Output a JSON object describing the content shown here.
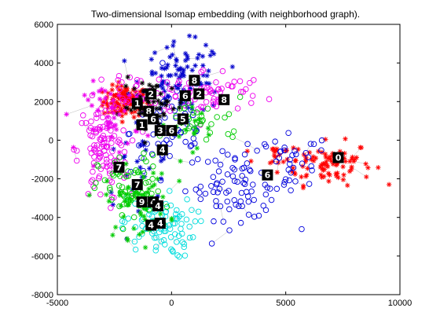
{
  "chart_data": {
    "type": "scatter",
    "title": "Two-dimensional Isomap embedding (with neighborhood graph).",
    "xlabel": "",
    "ylabel": "",
    "xlim": [
      -5000,
      10000
    ],
    "ylim": [
      -8000,
      6000
    ],
    "xticks": [
      "-5000",
      "0",
      "5000",
      "10000"
    ],
    "yticks": [
      "-8000",
      "-6000",
      "-4000",
      "-2000",
      "0",
      "2000",
      "4000",
      "6000"
    ],
    "grid": false,
    "legend": "none",
    "series": [
      {
        "marker": "star",
        "color": "#ff0000",
        "clusters": [
          {
            "cx": -2000,
            "cy": 2000,
            "sx": 500,
            "sy": 400,
            "n": 120
          },
          {
            "cx": 6800,
            "cy": -1200,
            "sx": 1000,
            "sy": 550,
            "n": 90
          },
          {
            "cx": 4500,
            "cy": -800,
            "sx": 500,
            "sy": 400,
            "n": 18
          }
        ]
      },
      {
        "marker": "circle",
        "color": "#0000dd",
        "clusters": [
          {
            "cx": 3000,
            "cy": -2300,
            "sx": 1200,
            "sy": 900,
            "n": 90
          },
          {
            "cx": 0,
            "cy": 400,
            "sx": 900,
            "sy": 1100,
            "n": 55
          },
          {
            "cx": 5300,
            "cy": -1100,
            "sx": 800,
            "sy": 700,
            "n": 25
          }
        ]
      },
      {
        "marker": "star",
        "color": "#0000cc",
        "clusters": [
          {
            "cx": 500,
            "cy": 3200,
            "sx": 900,
            "sy": 900,
            "n": 100
          },
          {
            "cx": -1500,
            "cy": -1500,
            "sx": 800,
            "sy": 900,
            "n": 25
          }
        ]
      },
      {
        "marker": "circle",
        "color": "#ee00ee",
        "clusters": [
          {
            "cx": -3000,
            "cy": -600,
            "sx": 550,
            "sy": 1300,
            "n": 110
          },
          {
            "cx": 1500,
            "cy": 2500,
            "sx": 1300,
            "sy": 600,
            "n": 70
          },
          {
            "cx": -1500,
            "cy": 2600,
            "sx": 600,
            "sy": 500,
            "n": 30
          }
        ]
      },
      {
        "marker": "circle",
        "color": "#00dddd",
        "clusters": [
          {
            "cx": -600,
            "cy": -4500,
            "sx": 800,
            "sy": 800,
            "n": 90
          }
        ]
      },
      {
        "marker": "circle",
        "color": "#00cc00",
        "clusters": [
          {
            "cx": -1800,
            "cy": -2600,
            "sx": 700,
            "sy": 900,
            "n": 70
          },
          {
            "cx": 1500,
            "cy": 1000,
            "sx": 900,
            "sy": 600,
            "n": 30
          }
        ]
      },
      {
        "marker": "star",
        "color": "#00cc00",
        "clusters": [
          {
            "cx": -1500,
            "cy": -3200,
            "sx": 700,
            "sy": 900,
            "n": 60
          },
          {
            "cx": 800,
            "cy": 800,
            "sx": 900,
            "sy": 600,
            "n": 20
          }
        ]
      },
      {
        "marker": "star",
        "color": "#000000",
        "clusters": [
          {
            "cx": -800,
            "cy": 1700,
            "sx": 700,
            "sy": 700,
            "n": 50
          }
        ]
      },
      {
        "marker": "star",
        "color": "#ee00ee",
        "clusters": [
          {
            "cx": -2600,
            "cy": 1200,
            "sx": 600,
            "sy": 900,
            "n": 40
          }
        ]
      }
    ],
    "digit_images": [
      {
        "label": "8",
        "x": 1000,
        "y": 3100
      },
      {
        "label": "2",
        "x": -900,
        "y": 2400
      },
      {
        "label": "6",
        "x": 600,
        "y": 2300
      },
      {
        "label": "2",
        "x": 1200,
        "y": 2400
      },
      {
        "label": "8",
        "x": 2300,
        "y": 2100
      },
      {
        "label": "1",
        "x": -1500,
        "y": 1900
      },
      {
        "label": "8",
        "x": -1000,
        "y": 1500
      },
      {
        "label": "6",
        "x": -800,
        "y": 1100
      },
      {
        "label": "5",
        "x": 500,
        "y": 1100
      },
      {
        "label": "1",
        "x": -1300,
        "y": 800
      },
      {
        "label": "3",
        "x": -500,
        "y": 500
      },
      {
        "label": "6",
        "x": 0,
        "y": 500
      },
      {
        "label": "0",
        "x": 7300,
        "y": -900
      },
      {
        "label": "4",
        "x": -400,
        "y": -500
      },
      {
        "label": "7",
        "x": -2300,
        "y": -1400
      },
      {
        "label": "6",
        "x": 4200,
        "y": -1800
      },
      {
        "label": "7",
        "x": -1500,
        "y": -2300
      },
      {
        "label": "9",
        "x": -1300,
        "y": -3200
      },
      {
        "label": "4",
        "x": -800,
        "y": -3200
      },
      {
        "label": "4",
        "x": -600,
        "y": -3400
      },
      {
        "label": "4",
        "x": -900,
        "y": -4400
      },
      {
        "label": "4",
        "x": -500,
        "y": -4300
      }
    ]
  }
}
